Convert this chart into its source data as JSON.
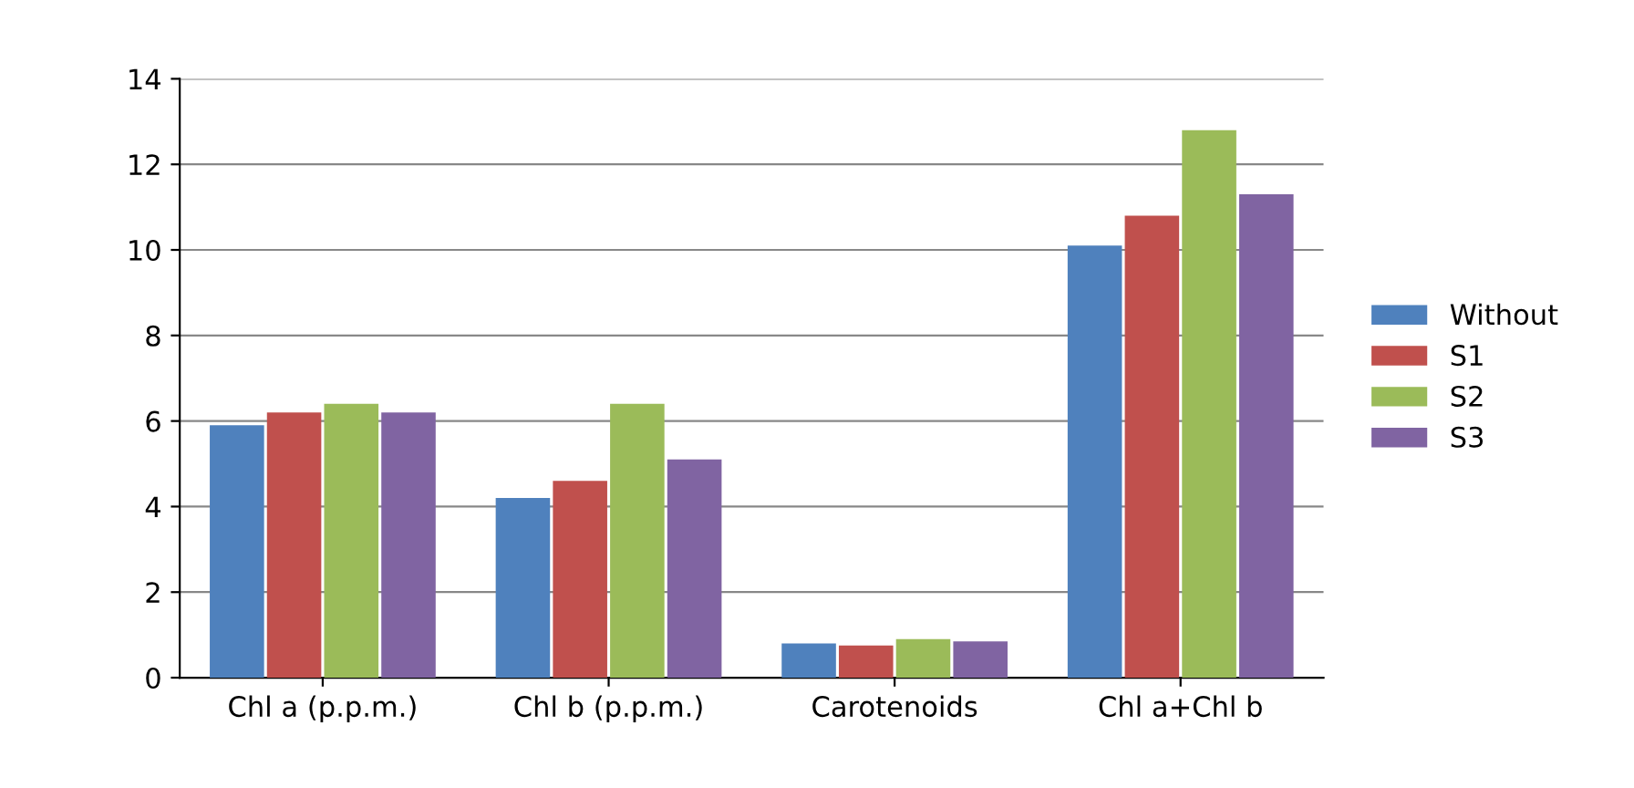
{
  "chart_data": {
    "type": "bar",
    "categories": [
      "Chl a (p.p.m.)",
      "Chl b (p.p.m.)",
      "Carotenoids",
      "Chl a+Chl b"
    ],
    "series": [
      {
        "name": "Without",
        "color": "#4f81bd",
        "values": [
          5.9,
          4.2,
          0.8,
          10.1
        ]
      },
      {
        "name": "S1",
        "color": "#c0504d",
        "values": [
          6.2,
          4.6,
          0.75,
          10.8
        ]
      },
      {
        "name": "S2",
        "color": "#9bbb59",
        "values": [
          6.4,
          6.4,
          0.9,
          12.8
        ]
      },
      {
        "name": "S3",
        "color": "#8064a2",
        "values": [
          6.2,
          5.1,
          0.85,
          11.3
        ]
      }
    ],
    "ylim": [
      0,
      14
    ],
    "yticks": [
      0,
      2,
      4,
      6,
      8,
      10,
      12,
      14
    ],
    "grid": "y",
    "legend": "right"
  }
}
